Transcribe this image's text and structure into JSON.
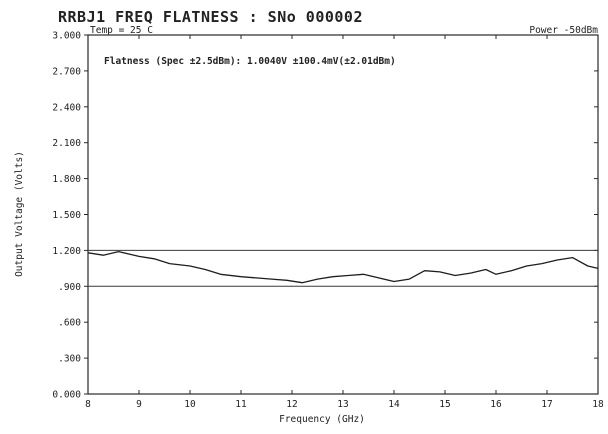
{
  "chart_data": {
    "type": "line",
    "title": "RRBJ1 FREQ FLATNESS : SNo 000002",
    "temp_label": "Temp = 25 C",
    "power_label": "Power -50dBm",
    "annotation": "Flatness (Spec ±2.5dBm): 1.0040V ±100.4mV(±2.01dBm)",
    "xlabel": "Frequency (GHz)",
    "ylabel": "Output Voltage (Volts)",
    "xlim": [
      8,
      18
    ],
    "ylim": [
      0,
      3.0
    ],
    "x_ticks": [
      8,
      9,
      10,
      11,
      12,
      13,
      14,
      15,
      16,
      17,
      18
    ],
    "x_tick_labels": [
      "8",
      "9",
      "10",
      "11",
      "12",
      "13",
      "14",
      "15",
      "16",
      "17",
      "18"
    ],
    "y_ticks": [
      0,
      0.3,
      0.6,
      0.9,
      1.2,
      1.5,
      1.8,
      2.1,
      2.4,
      2.7,
      3.0
    ],
    "y_tick_labels": [
      "0.000",
      ".300",
      ".600",
      ".900",
      "1.200",
      "1.500",
      "1.800",
      "2.100",
      "2.400",
      "2.700",
      "3.000"
    ],
    "reference_lines": [
      1.2,
      0.9
    ],
    "grid": false,
    "series": [
      {
        "x": [
          8.0,
          8.3,
          8.6,
          8.8,
          9.0,
          9.3,
          9.6,
          10.0,
          10.3,
          10.6,
          11.0,
          11.3,
          11.6,
          11.9,
          12.2,
          12.5,
          12.8,
          13.1,
          13.4,
          13.7,
          14.0,
          14.3,
          14.6,
          14.9,
          15.2,
          15.5,
          15.8,
          16.0,
          16.3,
          16.6,
          16.9,
          17.2,
          17.5,
          17.8,
          18.0
        ],
        "y": [
          1.18,
          1.16,
          1.19,
          1.17,
          1.15,
          1.13,
          1.09,
          1.07,
          1.04,
          1.0,
          0.98,
          0.97,
          0.96,
          0.95,
          0.93,
          0.96,
          0.98,
          0.99,
          1.0,
          0.97,
          0.94,
          0.96,
          1.03,
          1.02,
          0.99,
          1.01,
          1.04,
          1.0,
          1.03,
          1.07,
          1.09,
          1.12,
          1.14,
          1.07,
          1.05
        ]
      }
    ]
  }
}
